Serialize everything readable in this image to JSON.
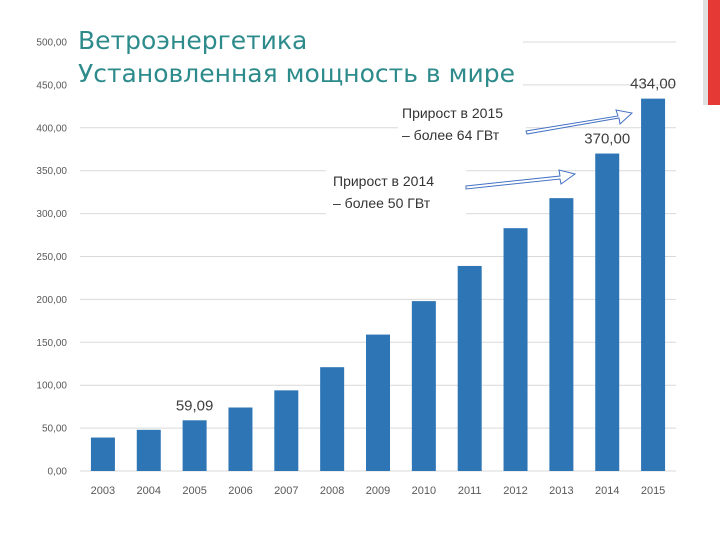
{
  "slide": {
    "title_line1": "Ветроэнергетика",
    "title_line2": "Установленная мощность в мире",
    "accent_color": "#e53935",
    "title_color": "#2e8b8b"
  },
  "annotations": {
    "growth_2015_line1": "Прирост в 2015",
    "growth_2015_line2": "– более 64 ГВт",
    "growth_2014_line1": "Прирост в 2014",
    "growth_2014_line2": "– более 50 ГВт"
  },
  "chart_data": {
    "type": "bar",
    "categories": [
      "2003",
      "2004",
      "2005",
      "2006",
      "2007",
      "2008",
      "2009",
      "2010",
      "2011",
      "2012",
      "2013",
      "2014",
      "2015"
    ],
    "values": [
      39,
      48,
      59.09,
      74,
      94,
      121,
      159,
      198,
      239,
      283,
      318,
      370,
      434
    ],
    "ylim": [
      0,
      500
    ],
    "yticks": [
      0,
      50,
      100,
      150,
      200,
      250,
      300,
      350,
      400,
      450,
      500
    ],
    "ytick_labels": [
      "0,00",
      "50,00",
      "100,00",
      "150,00",
      "200,00",
      "250,00",
      "300,00",
      "350,00",
      "400,00",
      "450,00",
      "500,00"
    ],
    "data_labels": [
      {
        "category": "2005",
        "text": "59,09"
      },
      {
        "category": "2014",
        "text": "370,00"
      },
      {
        "category": "2015",
        "text": "434,00"
      }
    ],
    "bar_color": "#2e75b6",
    "grid": true,
    "legend": "none",
    "xlabel": "",
    "ylabel": ""
  }
}
